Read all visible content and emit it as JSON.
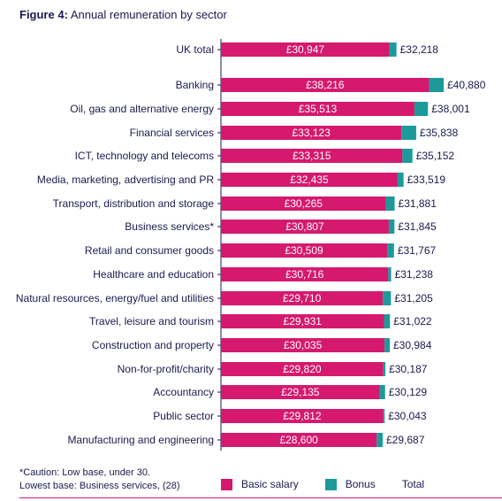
{
  "figure_label": "Figure 4:",
  "figure_title": "Annual remuneration by sector",
  "footer": {
    "caution": "*Caution: Low base, under 30.",
    "lowest_base": "Lowest base: Business services, (28)"
  },
  "colors": {
    "basic": "#d5196e",
    "bonus": "#1c9a9a",
    "text": "#1a1a4e",
    "axis": "#1a1a4e"
  },
  "chart_data": {
    "type": "bar",
    "orientation": "horizontal",
    "stacked": true,
    "title": "Annual remuneration by sector",
    "categories": [
      "UK total",
      "Banking",
      "Oil, gas and alternative energy",
      "Financial services",
      "ICT, technology and telecoms",
      "Media, marketing, advertising and PR",
      "Transport, distribution and storage",
      "Business services*",
      "Retail and consumer goods",
      "Healthcare and education",
      "Natural resources, energy/fuel and utilities",
      "Travel, leisure and tourism",
      "Construction and property",
      "Non-for-profit/charity",
      "Accountancy",
      "Public sector",
      "Manufacturing and engineering"
    ],
    "series": [
      {
        "name": "Basic salary",
        "values": [
          30947,
          38216,
          35513,
          33123,
          33315,
          32435,
          30265,
          30807,
          30509,
          30716,
          29710,
          29931,
          30035,
          29820,
          29135,
          29812,
          28600
        ]
      },
      {
        "name": "Bonus",
        "values": [
          1271,
          2664,
          2488,
          2715,
          1837,
          1084,
          1616,
          1038,
          1258,
          522,
          1495,
          1091,
          949,
          367,
          994,
          231,
          1087
        ]
      }
    ],
    "basic_labels": [
      "£30,947",
      "£38,216",
      "£35,513",
      "£33,123",
      "£33,315",
      "£32,435",
      "£30,265",
      "£30,807",
      "£30,509",
      "£30,716",
      "£29,710",
      "£29,931",
      "£30,035",
      "£29,820",
      "£29,135",
      "£29,812",
      "£28,600"
    ],
    "total_labels": [
      "£32,218",
      "£40,880",
      "£38,001",
      "£35,838",
      "£35,152",
      "£33,519",
      "£31,881",
      "£31,845",
      "£31,767",
      "£31,238",
      "£31,205",
      "£31,022",
      "£30,984",
      "£30,187",
      "£30,129",
      "£30,043",
      "£29,687"
    ],
    "legend": [
      "Basic salary",
      "Bonus",
      "Total"
    ],
    "legend_placement": "bottom"
  }
}
